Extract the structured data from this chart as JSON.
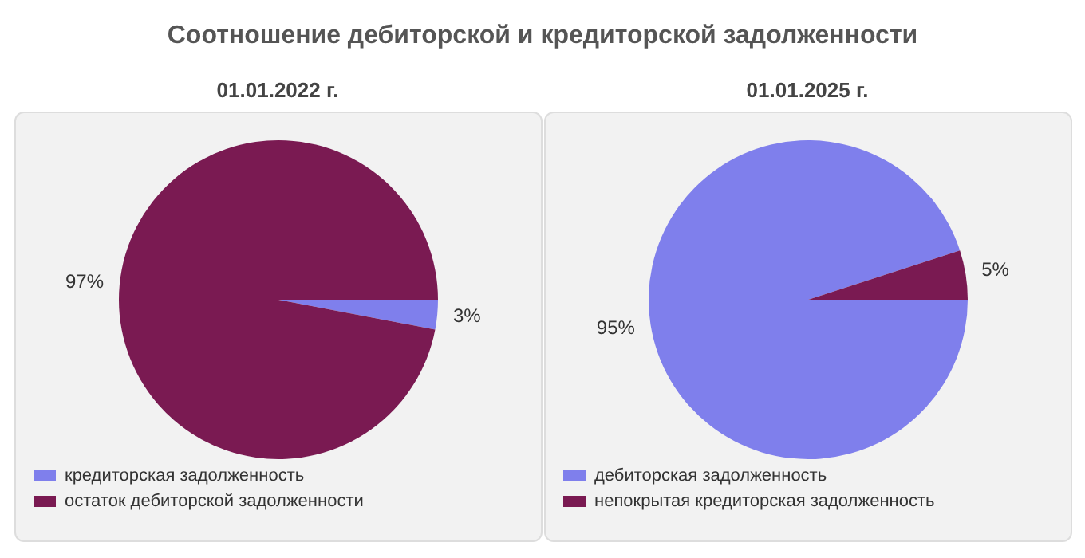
{
  "chart_data": [
    {
      "type": "pie",
      "title": "Соотношение дебиторской и кредиторской задолженности",
      "subtitle": "01.01.2022 г.",
      "categories": [
        "кредиторская задолженность",
        "остаток дебиторской задолженности"
      ],
      "values": [
        3,
        97
      ],
      "colors": [
        "#7f7fec",
        "#7a1a52"
      ],
      "value_labels": [
        "3%",
        "97%"
      ],
      "legend": "bottom"
    },
    {
      "type": "pie",
      "subtitle": "01.01.2025 г.",
      "categories": [
        "дебиторская задолженность",
        "непокрытая кредиторская задолженность"
      ],
      "values": [
        95,
        5
      ],
      "colors": [
        "#7f7fec",
        "#7a1a52"
      ],
      "value_labels": [
        "95%",
        "5%"
      ],
      "legend": "bottom"
    }
  ]
}
